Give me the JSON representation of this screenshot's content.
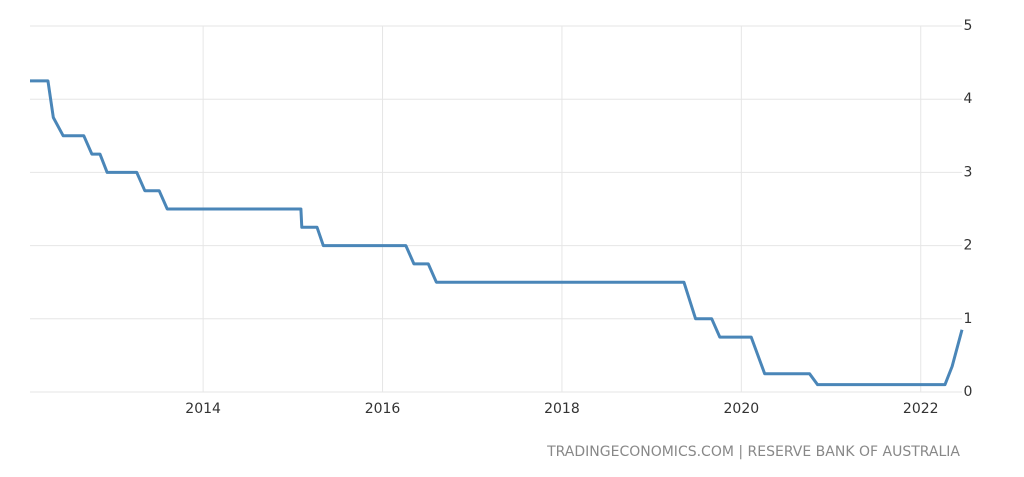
{
  "chart_data": {
    "type": "line",
    "source": "TRADINGECONOMICS.COM | RESERVE BANK OF AUSTRALIA",
    "x": [
      2012.07,
      2012.27,
      2012.33,
      2012.44,
      2012.67,
      2012.76,
      2012.85,
      2012.93,
      2013.26,
      2013.35,
      2013.51,
      2013.6,
      2015.09,
      2015.1,
      2015.27,
      2015.34,
      2016.26,
      2016.35,
      2016.51,
      2016.6,
      2019.36,
      2019.49,
      2019.67,
      2019.76,
      2020.11,
      2020.26,
      2020.76,
      2020.85,
      2022.27,
      2022.35,
      2022.46
    ],
    "series": [
      {
        "color": "#4a86b8",
        "values": [
          4.25,
          4.25,
          3.75,
          3.5,
          3.5,
          3.25,
          3.25,
          3.0,
          3.0,
          2.75,
          2.75,
          2.5,
          2.5,
          2.25,
          2.25,
          2.0,
          2.0,
          1.75,
          1.75,
          1.5,
          1.5,
          1.0,
          1.0,
          0.75,
          0.75,
          0.25,
          0.25,
          0.1,
          0.1,
          0.35,
          0.85
        ]
      }
    ],
    "xlim": [
      2012.07,
      2022.46
    ],
    "xticks": [
      2014,
      2016,
      2018,
      2020,
      2022
    ],
    "ylim": [
      0,
      5
    ],
    "yticks": [
      0,
      1,
      2,
      3,
      4,
      5
    ],
    "grid": true
  }
}
